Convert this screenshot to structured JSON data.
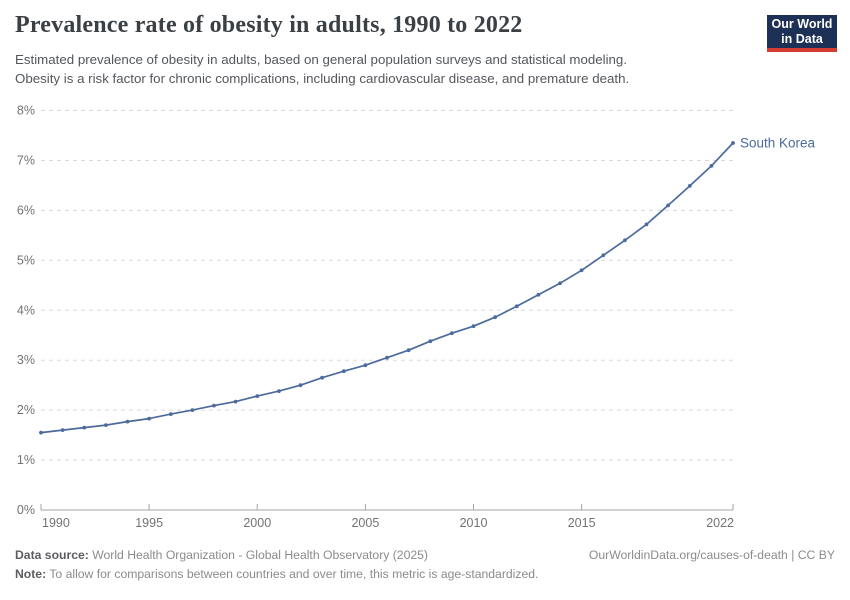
{
  "header": {
    "title": "Prevalence rate of obesity in adults, 1990 to 2022",
    "subtitle_lines": [
      "Estimated prevalence of obesity in adults, based on general population surveys and statistical modeling.",
      "Obesity is a risk factor for chronic complications, including cardiovascular disease, and premature death."
    ],
    "logo": {
      "line1": "Our World",
      "line2": "in Data",
      "bg_color": "#1d3156",
      "stripe_color": "#d53d33"
    }
  },
  "chart_data": {
    "type": "line",
    "title": "Prevalence rate of obesity in adults, 1990 to 2022",
    "xlabel": "",
    "ylabel": "",
    "x": [
      1990,
      1991,
      1992,
      1993,
      1994,
      1995,
      1996,
      1997,
      1998,
      1999,
      2000,
      2001,
      2002,
      2003,
      2004,
      2005,
      2006,
      2007,
      2008,
      2009,
      2010,
      2011,
      2012,
      2013,
      2014,
      2015,
      2016,
      2017,
      2018,
      2019,
      2020,
      2021,
      2022
    ],
    "series": [
      {
        "name": "South Korea",
        "color": "#4c6a9c",
        "values": [
          1.55,
          1.6,
          1.65,
          1.7,
          1.77,
          1.83,
          1.92,
          2.0,
          2.09,
          2.17,
          2.28,
          2.38,
          2.5,
          2.65,
          2.78,
          2.9,
          3.05,
          3.2,
          3.38,
          3.54,
          3.68,
          3.86,
          4.08,
          4.31,
          4.54,
          4.8,
          5.1,
          5.4,
          5.72,
          6.1,
          6.49,
          6.89,
          7.35
        ]
      }
    ],
    "ylim": [
      0,
      8
    ],
    "yticks": [
      0,
      1,
      2,
      3,
      4,
      5,
      6,
      7,
      8
    ],
    "ytick_suffix": "%",
    "xticks": [
      1990,
      1995,
      2000,
      2005,
      2010,
      2015,
      2022
    ],
    "grid": "horizontal-dashed",
    "legend_position": "end-of-line-label",
    "end_label": "South Korea"
  },
  "footer": {
    "datasource_label": "Data source:",
    "datasource_text": " World Health Organization - Global Health Observatory (2025)",
    "rights": "OurWorldinData.org/causes-of-death | CC BY",
    "note_label": "Note:",
    "note_text": " To allow for comparisons between countries and over time, this metric is age-standardized."
  },
  "colors": {
    "grid": "#dadada",
    "axis": "#a3a3a3",
    "tick_label": "#737373",
    "line": "#4c6a9c",
    "title": "#3b4045"
  }
}
